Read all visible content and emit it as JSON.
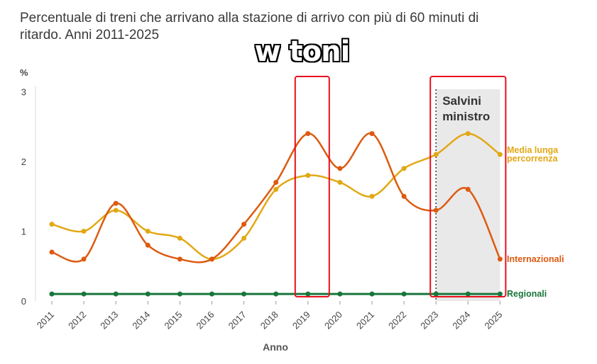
{
  "title_lines": [
    "Percentuale di treni che arrivano alla stazione di arrivo con più di 60 minuti di",
    "ritardo. Anni 2011-2025"
  ],
  "meme_text": "w toni",
  "colors": {
    "media": "#e2a814",
    "internazionali": "#dd5a10",
    "regionali": "#18773a",
    "highlight_box": "#e8101c",
    "shade": "#e9e9e9",
    "grid": "#e4e4e4"
  },
  "chart_data": {
    "type": "line",
    "title": "Percentuale di treni che arrivano alla stazione di arrivo con più di 60 minuti di ritardo. Anni 2011-2025",
    "xlabel": "Anno",
    "ylabel": "%",
    "ylim": [
      0,
      3
    ],
    "yticks": [
      "0",
      "1",
      "2",
      "3"
    ],
    "categories": [
      "2011",
      "2012",
      "2013",
      "2014",
      "2015",
      "2016",
      "2017",
      "2018",
      "2019",
      "2020",
      "2021",
      "2022",
      "2023",
      "2024",
      "2025"
    ],
    "series": [
      {
        "name": "Media lunga percorrenza",
        "label_lines": [
          "Media lunga",
          "percorrenza"
        ],
        "color": "#e2a814",
        "values": [
          1.1,
          1.0,
          1.3,
          1.0,
          0.9,
          0.6,
          0.9,
          1.6,
          1.8,
          1.7,
          1.5,
          1.9,
          2.1,
          2.4,
          2.1
        ]
      },
      {
        "name": "Internazionali",
        "label_lines": [
          "Internazionali"
        ],
        "color": "#dd5a10",
        "values": [
          0.7,
          0.6,
          1.4,
          0.8,
          0.6,
          0.6,
          1.1,
          1.7,
          2.4,
          1.9,
          2.4,
          1.5,
          1.3,
          1.6,
          0.6
        ]
      },
      {
        "name": "Regionali",
        "label_lines": [
          "Regionali"
        ],
        "color": "#18773a",
        "values": [
          0.1,
          0.1,
          0.1,
          0.1,
          0.1,
          0.1,
          0.1,
          0.1,
          0.1,
          0.1,
          0.1,
          0.1,
          0.1,
          0.1,
          0.1
        ]
      }
    ],
    "shaded_period": {
      "from": "2023",
      "to": "2025",
      "label_lines": [
        "Salvini",
        "ministro"
      ]
    },
    "highlight_boxes": [
      {
        "year": "2019"
      },
      {
        "from": "2023",
        "to": "2025"
      }
    ],
    "grid": false,
    "legend": "inline-right"
  }
}
